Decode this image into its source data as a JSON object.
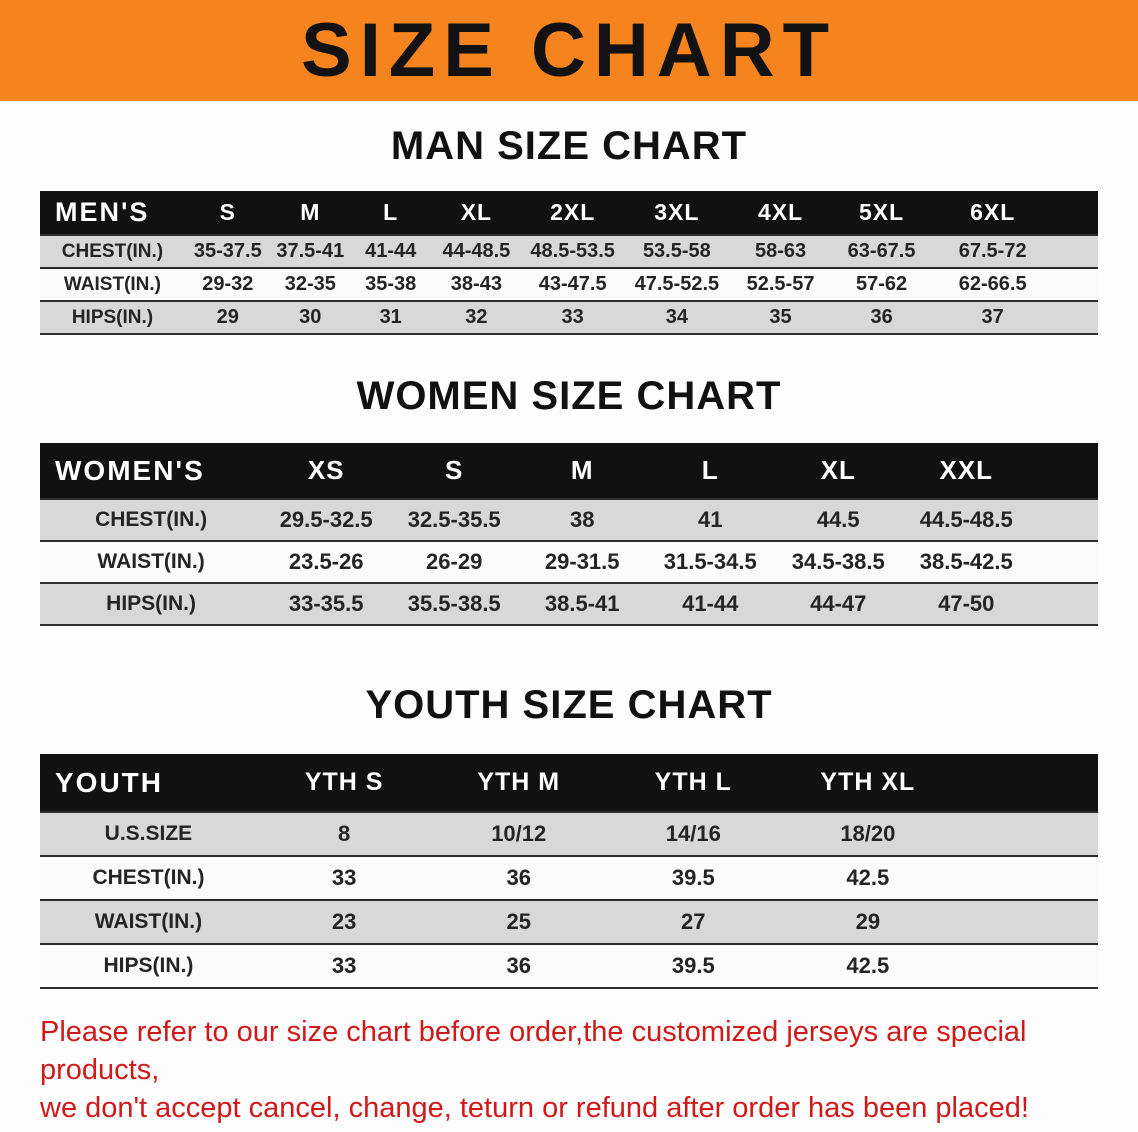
{
  "banner": {
    "title": "SIZE CHART"
  },
  "sections": [
    {
      "heading": "MAN SIZE CHART",
      "table": {
        "header": [
          "MEN'S",
          "S",
          "M",
          "L",
          "XL",
          "2XL",
          "3XL",
          "4XL",
          "5XL",
          "6XL"
        ],
        "rows": [
          [
            "CHEST(IN.)",
            "35-37.5",
            "37.5-41",
            "41-44",
            "44-48.5",
            "48.5-53.5",
            "53.5-58",
            "58-63",
            "63-67.5",
            "67.5-72"
          ],
          [
            "WAIST(IN.)",
            "29-32",
            "32-35",
            "35-38",
            "38-43",
            "43-47.5",
            "47.5-52.5",
            "52.5-57",
            "57-62",
            "62-66.5"
          ],
          [
            "HIPS(IN.)",
            "29",
            "30",
            "31",
            "32",
            "33",
            "34",
            "35",
            "36",
            "37"
          ]
        ]
      }
    },
    {
      "heading": "WOMEN SIZE CHART",
      "table": {
        "header": [
          "WOMEN'S",
          "XS",
          "S",
          "M",
          "L",
          "XL",
          "XXL"
        ],
        "rows": [
          [
            "CHEST(IN.)",
            "29.5-32.5",
            "32.5-35.5",
            "38",
            "41",
            "44.5",
            "44.5-48.5"
          ],
          [
            "WAIST(IN.)",
            "23.5-26",
            "26-29",
            "29-31.5",
            "31.5-34.5",
            "34.5-38.5",
            "38.5-42.5"
          ],
          [
            "HIPS(IN.)",
            "33-35.5",
            "35.5-38.5",
            "38.5-41",
            "41-44",
            "44-47",
            "47-50"
          ]
        ]
      }
    },
    {
      "heading": "YOUTH SIZE CHART",
      "table": {
        "header": [
          "YOUTH",
          "YTH S",
          "YTH M",
          "YTH L",
          "YTH XL"
        ],
        "rows": [
          [
            "U.S.SIZE",
            "8",
            "10/12",
            "14/16",
            "18/20"
          ],
          [
            "CHEST(IN.)",
            "33",
            "36",
            "39.5",
            "42.5"
          ],
          [
            "WAIST(IN.)",
            "23",
            "25",
            "27",
            "29"
          ],
          [
            "HIPS(IN.)",
            "33",
            "36",
            "39.5",
            "42.5"
          ]
        ]
      }
    }
  ],
  "footer": {
    "line1": "Please refer to our size chart before order,the customized jerseys are special products,",
    "line2": "we don't accept cancel, change, teturn or refund after order has been placed!"
  },
  "colors": {
    "banner_bg": "#F5841E",
    "header_bg": "#111111",
    "stripe": "#d8d8d8",
    "footer_text": "#d01a1a"
  }
}
